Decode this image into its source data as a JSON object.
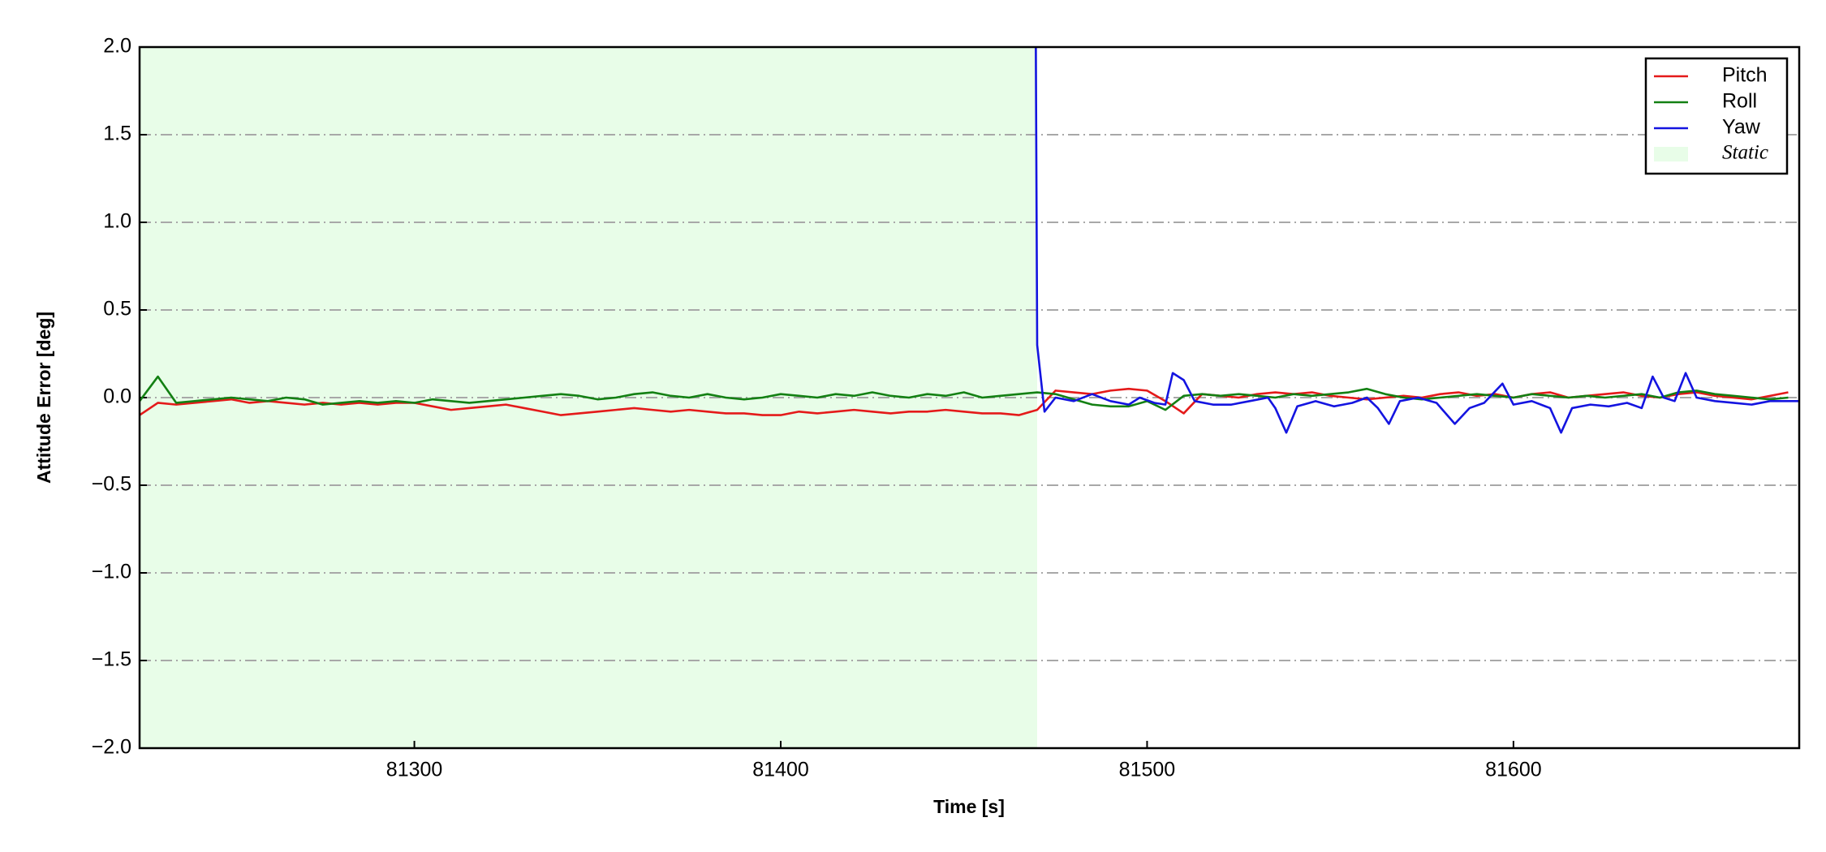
{
  "chart_data": {
    "type": "line",
    "xlabel": "Time [s]",
    "ylabel": "Attitude Error [deg]",
    "xlim": [
      81225,
      81678
    ],
    "ylim": [
      -2,
      2
    ],
    "xticks": [
      81300,
      81400,
      81500,
      81600
    ],
    "yticks": [
      {
        "value": -2,
        "label": "−2.0"
      },
      {
        "value": -1.5,
        "label": "−1.5"
      },
      {
        "value": -1,
        "label": "−1.0"
      },
      {
        "value": -0.5,
        "label": "−0.5"
      },
      {
        "value": 0,
        "label": "0.0"
      },
      0.5,
      {
        "value": 1,
        "label": "1.0"
      },
      1.5,
      {
        "value": 2,
        "label": "2.0"
      }
    ],
    "grid": true,
    "legend": "upper right",
    "static_region": {
      "label": "Static",
      "x": [
        81225,
        81470
      ],
      "color": "#e8fde8"
    },
    "series": [
      {
        "name": "Pitch",
        "color": "#e41a1a",
        "x": [
          81225,
          81230,
          81235,
          81240,
          81245,
          81250,
          81255,
          81260,
          81265,
          81270,
          81275,
          81280,
          81285,
          81290,
          81295,
          81300,
          81305,
          81310,
          81315,
          81320,
          81325,
          81330,
          81335,
          81340,
          81345,
          81350,
          81355,
          81360,
          81365,
          81370,
          81375,
          81380,
          81385,
          81390,
          81395,
          81400,
          81405,
          81410,
          81415,
          81420,
          81425,
          81430,
          81435,
          81440,
          81445,
          81450,
          81455,
          81460,
          81465,
          81470,
          81475,
          81480,
          81485,
          81490,
          81495,
          81500,
          81505,
          81510,
          81515,
          81520,
          81525,
          81530,
          81535,
          81540,
          81545,
          81550,
          81555,
          81560,
          81565,
          81570,
          81575,
          81580,
          81585,
          81590,
          81595,
          81600,
          81605,
          81610,
          81615,
          81620,
          81625,
          81630,
          81635,
          81640,
          81645,
          81650,
          81655,
          81660,
          81665,
          81670,
          81675
        ],
        "values": [
          -0.1,
          -0.03,
          -0.04,
          -0.03,
          -0.02,
          -0.01,
          -0.03,
          -0.02,
          -0.03,
          -0.04,
          -0.03,
          -0.04,
          -0.03,
          -0.04,
          -0.03,
          -0.03,
          -0.05,
          -0.07,
          -0.06,
          -0.05,
          -0.04,
          -0.06,
          -0.08,
          -0.1,
          -0.09,
          -0.08,
          -0.07,
          -0.06,
          -0.07,
          -0.08,
          -0.07,
          -0.08,
          -0.09,
          -0.09,
          -0.1,
          -0.1,
          -0.08,
          -0.09,
          -0.08,
          -0.07,
          -0.08,
          -0.09,
          -0.08,
          -0.08,
          -0.07,
          -0.08,
          -0.09,
          -0.09,
          -0.1,
          -0.07,
          0.04,
          0.03,
          0.02,
          0.04,
          0.05,
          0.04,
          -0.02,
          -0.09,
          0.02,
          0.01,
          0.0,
          0.02,
          0.03,
          0.02,
          0.03,
          0.01,
          0.0,
          -0.01,
          0.0,
          0.01,
          0.0,
          0.02,
          0.03,
          0.01,
          0.02,
          0.0,
          0.02,
          0.03,
          0.0,
          0.01,
          0.02,
          0.03,
          0.01,
          0.0,
          0.02,
          0.03,
          0.01,
          0.0,
          -0.01,
          0.01,
          0.03
        ]
      },
      {
        "name": "Roll",
        "color": "#138013",
        "x": [
          81225,
          81230,
          81235,
          81240,
          81245,
          81250,
          81255,
          81260,
          81265,
          81270,
          81275,
          81280,
          81285,
          81290,
          81295,
          81300,
          81305,
          81310,
          81315,
          81320,
          81325,
          81330,
          81335,
          81340,
          81345,
          81350,
          81355,
          81360,
          81365,
          81370,
          81375,
          81380,
          81385,
          81390,
          81395,
          81400,
          81405,
          81410,
          81415,
          81420,
          81425,
          81430,
          81435,
          81440,
          81445,
          81450,
          81455,
          81460,
          81465,
          81470,
          81475,
          81480,
          81485,
          81490,
          81495,
          81500,
          81505,
          81510,
          81515,
          81520,
          81525,
          81530,
          81535,
          81540,
          81545,
          81550,
          81555,
          81560,
          81565,
          81570,
          81575,
          81580,
          81585,
          81590,
          81595,
          81600,
          81605,
          81610,
          81615,
          81620,
          81625,
          81630,
          81635,
          81640,
          81645,
          81650,
          81655,
          81660,
          81665,
          81670,
          81675
        ],
        "values": [
          -0.02,
          0.12,
          -0.03,
          -0.02,
          -0.01,
          0.0,
          -0.01,
          -0.02,
          0.0,
          -0.01,
          -0.04,
          -0.03,
          -0.02,
          -0.03,
          -0.02,
          -0.03,
          -0.01,
          -0.02,
          -0.03,
          -0.02,
          -0.01,
          0.0,
          0.01,
          0.02,
          0.01,
          -0.01,
          0.0,
          0.02,
          0.03,
          0.01,
          0.0,
          0.02,
          0.0,
          -0.01,
          0.0,
          0.02,
          0.01,
          0.0,
          0.02,
          0.01,
          0.03,
          0.01,
          0.0,
          0.02,
          0.01,
          0.03,
          0.0,
          0.01,
          0.02,
          0.03,
          0.02,
          -0.01,
          -0.04,
          -0.05,
          -0.05,
          -0.02,
          -0.07,
          0.01,
          0.02,
          0.01,
          0.02,
          0.01,
          0.0,
          0.02,
          0.01,
          0.02,
          0.03,
          0.05,
          0.02,
          0.0,
          -0.01,
          0.0,
          0.01,
          0.02,
          0.01,
          0.0,
          0.02,
          0.01,
          0.0,
          0.01,
          0.0,
          0.01,
          0.02,
          0.0,
          0.03,
          0.04,
          0.02,
          0.01,
          0.0,
          -0.01,
          0.0
        ]
      },
      {
        "name": "Yaw",
        "color": "#1414e0",
        "x": [
          81469.5,
          81470,
          81472,
          81475,
          81480,
          81485,
          81490,
          81495,
          81498,
          81502,
          81505,
          81507,
          81510,
          81513,
          81518,
          81523,
          81528,
          81533,
          81535,
          81538,
          81541,
          81546,
          81551,
          81556,
          81560,
          81563,
          81566,
          81569,
          81574,
          81579,
          81584,
          81588,
          81592,
          81597,
          81600,
          81605,
          81610,
          81613,
          81616,
          81621,
          81626,
          81631,
          81635,
          81638,
          81641,
          81644,
          81647,
          81650,
          81655,
          81660,
          81665,
          81670,
          81678
        ],
        "values": [
          2.6,
          0.3,
          -0.08,
          0.0,
          -0.02,
          0.02,
          -0.02,
          -0.04,
          0.0,
          -0.03,
          -0.04,
          0.14,
          0.1,
          -0.02,
          -0.04,
          -0.04,
          -0.02,
          0.0,
          -0.06,
          -0.2,
          -0.05,
          -0.02,
          -0.05,
          -0.03,
          0.0,
          -0.06,
          -0.15,
          -0.02,
          0.0,
          -0.03,
          -0.15,
          -0.06,
          -0.03,
          0.08,
          -0.04,
          -0.02,
          -0.06,
          -0.2,
          -0.06,
          -0.04,
          -0.05,
          -0.03,
          -0.06,
          0.12,
          0.0,
          -0.02,
          0.14,
          0.0,
          -0.02,
          -0.03,
          -0.04,
          -0.02,
          -0.02
        ]
      }
    ]
  }
}
